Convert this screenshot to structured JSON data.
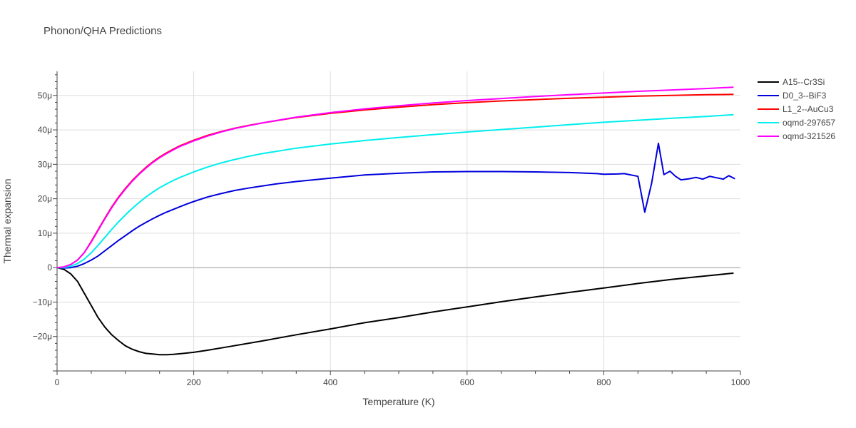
{
  "chart_data": {
    "type": "line",
    "title": "Phonon/QHA Predictions",
    "xlabel": "Temperature (K)",
    "ylabel": "Thermal expansion",
    "xlim": [
      0,
      1000
    ],
    "ylim": [
      -30,
      57
    ],
    "x_ticks": [
      {
        "value": 0,
        "label": "0"
      },
      {
        "value": 200,
        "label": "200"
      },
      {
        "value": 400,
        "label": "400"
      },
      {
        "value": 600,
        "label": "600"
      },
      {
        "value": 800,
        "label": "800"
      },
      {
        "value": 1000,
        "label": "1000"
      }
    ],
    "y_ticks": [
      {
        "value": -20,
        "label": "−20μ"
      },
      {
        "value": -10,
        "label": "−10μ"
      },
      {
        "value": 0,
        "label": "0"
      },
      {
        "value": 10,
        "label": "10μ"
      },
      {
        "value": 20,
        "label": "20μ"
      },
      {
        "value": 30,
        "label": "30μ"
      },
      {
        "value": 40,
        "label": "40μ"
      },
      {
        "value": 50,
        "label": "50μ"
      }
    ],
    "grid": true,
    "legend_position": "top-right",
    "series": [
      {
        "name": "A15--Cr3Si",
        "color": "#000000",
        "points": [
          [
            0,
            0
          ],
          [
            10,
            -0.5
          ],
          [
            20,
            -1.8
          ],
          [
            30,
            -4
          ],
          [
            40,
            -7.5
          ],
          [
            50,
            -11
          ],
          [
            60,
            -14.5
          ],
          [
            70,
            -17.3
          ],
          [
            80,
            -19.5
          ],
          [
            90,
            -21.2
          ],
          [
            100,
            -22.7
          ],
          [
            110,
            -23.7
          ],
          [
            120,
            -24.4
          ],
          [
            130,
            -24.9
          ],
          [
            140,
            -25.1
          ],
          [
            150,
            -25.3
          ],
          [
            160,
            -25.3
          ],
          [
            170,
            -25.2
          ],
          [
            180,
            -25.0
          ],
          [
            200,
            -24.6
          ],
          [
            220,
            -24.0
          ],
          [
            250,
            -23.0
          ],
          [
            300,
            -21.3
          ],
          [
            350,
            -19.5
          ],
          [
            400,
            -17.8
          ],
          [
            450,
            -16.0
          ],
          [
            500,
            -14.5
          ],
          [
            550,
            -12.9
          ],
          [
            600,
            -11.4
          ],
          [
            650,
            -9.9
          ],
          [
            700,
            -8.5
          ],
          [
            750,
            -7.2
          ],
          [
            800,
            -5.9
          ],
          [
            850,
            -4.6
          ],
          [
            900,
            -3.4
          ],
          [
            950,
            -2.4
          ],
          [
            990,
            -1.6
          ]
        ]
      },
      {
        "name": "D0_3--BiF3",
        "color": "#0000dd",
        "points": [
          [
            0,
            0
          ],
          [
            10,
            -0.1
          ],
          [
            20,
            0
          ],
          [
            30,
            0.4
          ],
          [
            40,
            1.2
          ],
          [
            50,
            2.2
          ],
          [
            60,
            3.4
          ],
          [
            70,
            4.9
          ],
          [
            80,
            6.4
          ],
          [
            90,
            7.9
          ],
          [
            100,
            9.3
          ],
          [
            110,
            10.7
          ],
          [
            120,
            12.0
          ],
          [
            130,
            13.1
          ],
          [
            140,
            14.2
          ],
          [
            150,
            15.2
          ],
          [
            160,
            16.1
          ],
          [
            170,
            16.9
          ],
          [
            180,
            17.7
          ],
          [
            190,
            18.5
          ],
          [
            200,
            19.2
          ],
          [
            220,
            20.5
          ],
          [
            240,
            21.5
          ],
          [
            260,
            22.4
          ],
          [
            280,
            23.1
          ],
          [
            300,
            23.7
          ],
          [
            320,
            24.3
          ],
          [
            350,
            25.0
          ],
          [
            400,
            26.0
          ],
          [
            450,
            26.9
          ],
          [
            500,
            27.4
          ],
          [
            550,
            27.8
          ],
          [
            600,
            27.9
          ],
          [
            650,
            27.9
          ],
          [
            700,
            27.8
          ],
          [
            750,
            27.6
          ],
          [
            790,
            27.3
          ],
          [
            800,
            27.1
          ],
          [
            820,
            27.2
          ],
          [
            830,
            27.3
          ],
          [
            850,
            26.5
          ],
          [
            860,
            16.1
          ],
          [
            870,
            24.5
          ],
          [
            880,
            36.1
          ],
          [
            888,
            27.0
          ],
          [
            897,
            28.0
          ],
          [
            905,
            26.5
          ],
          [
            913,
            25.5
          ],
          [
            925,
            25.8
          ],
          [
            935,
            26.2
          ],
          [
            945,
            25.7
          ],
          [
            955,
            26.5
          ],
          [
            965,
            26.1
          ],
          [
            975,
            25.7
          ],
          [
            983,
            26.7
          ],
          [
            992,
            25.8
          ]
        ]
      },
      {
        "name": "L1_2--AuCu3",
        "color": "#ff0000",
        "points": [
          [
            0,
            0
          ],
          [
            10,
            0.2
          ],
          [
            20,
            0.9
          ],
          [
            30,
            2.2
          ],
          [
            40,
            4.4
          ],
          [
            50,
            7.6
          ],
          [
            60,
            11.0
          ],
          [
            70,
            14.4
          ],
          [
            80,
            17.6
          ],
          [
            90,
            20.5
          ],
          [
            100,
            23.0
          ],
          [
            110,
            25.3
          ],
          [
            120,
            27.3
          ],
          [
            130,
            29.1
          ],
          [
            140,
            30.7
          ],
          [
            150,
            32.1
          ],
          [
            160,
            33.3
          ],
          [
            170,
            34.4
          ],
          [
            180,
            35.4
          ],
          [
            190,
            36.2
          ],
          [
            200,
            37.0
          ],
          [
            220,
            38.4
          ],
          [
            240,
            39.5
          ],
          [
            260,
            40.5
          ],
          [
            280,
            41.3
          ],
          [
            300,
            42.0
          ],
          [
            350,
            43.6
          ],
          [
            400,
            44.8
          ],
          [
            450,
            45.8
          ],
          [
            500,
            46.6
          ],
          [
            550,
            47.3
          ],
          [
            600,
            47.9
          ],
          [
            650,
            48.4
          ],
          [
            700,
            48.8
          ],
          [
            750,
            49.2
          ],
          [
            800,
            49.5
          ],
          [
            850,
            49.8
          ],
          [
            900,
            50.0
          ],
          [
            950,
            50.2
          ],
          [
            990,
            50.3
          ]
        ]
      },
      {
        "name": "oqmd-297657",
        "color": "#00eeee",
        "points": [
          [
            0,
            0
          ],
          [
            10,
            0
          ],
          [
            20,
            0.4
          ],
          [
            30,
            1.2
          ],
          [
            40,
            2.5
          ],
          [
            50,
            4.3
          ],
          [
            60,
            6.5
          ],
          [
            70,
            8.8
          ],
          [
            80,
            11.1
          ],
          [
            90,
            13.3
          ],
          [
            100,
            15.3
          ],
          [
            110,
            17.2
          ],
          [
            120,
            18.9
          ],
          [
            130,
            20.5
          ],
          [
            140,
            21.9
          ],
          [
            150,
            23.2
          ],
          [
            160,
            24.3
          ],
          [
            170,
            25.3
          ],
          [
            180,
            26.2
          ],
          [
            190,
            27.0
          ],
          [
            200,
            27.8
          ],
          [
            220,
            29.2
          ],
          [
            240,
            30.4
          ],
          [
            260,
            31.4
          ],
          [
            280,
            32.3
          ],
          [
            300,
            33.1
          ],
          [
            350,
            34.7
          ],
          [
            400,
            35.9
          ],
          [
            450,
            36.9
          ],
          [
            500,
            37.8
          ],
          [
            550,
            38.6
          ],
          [
            600,
            39.4
          ],
          [
            650,
            40.1
          ],
          [
            700,
            40.8
          ],
          [
            750,
            41.5
          ],
          [
            800,
            42.2
          ],
          [
            850,
            42.8
          ],
          [
            900,
            43.4
          ],
          [
            950,
            43.9
          ],
          [
            990,
            44.4
          ]
        ]
      },
      {
        "name": "oqmd-321526",
        "color": "#ff00ff",
        "points": [
          [
            0,
            0
          ],
          [
            10,
            0.2
          ],
          [
            20,
            0.9
          ],
          [
            30,
            2.2
          ],
          [
            40,
            4.4
          ],
          [
            50,
            7.4
          ],
          [
            60,
            10.8
          ],
          [
            70,
            14.2
          ],
          [
            80,
            17.4
          ],
          [
            90,
            20.3
          ],
          [
            100,
            22.8
          ],
          [
            110,
            25.1
          ],
          [
            120,
            27.1
          ],
          [
            130,
            28.9
          ],
          [
            140,
            30.5
          ],
          [
            150,
            31.9
          ],
          [
            160,
            33.1
          ],
          [
            170,
            34.2
          ],
          [
            180,
            35.2
          ],
          [
            190,
            36.0
          ],
          [
            200,
            36.8
          ],
          [
            220,
            38.2
          ],
          [
            240,
            39.4
          ],
          [
            260,
            40.4
          ],
          [
            280,
            41.2
          ],
          [
            300,
            42.0
          ],
          [
            350,
            43.7
          ],
          [
            400,
            45.0
          ],
          [
            450,
            46.1
          ],
          [
            500,
            47.0
          ],
          [
            550,
            47.8
          ],
          [
            600,
            48.5
          ],
          [
            650,
            49.1
          ],
          [
            700,
            49.7
          ],
          [
            750,
            50.2
          ],
          [
            800,
            50.7
          ],
          [
            850,
            51.2
          ],
          [
            900,
            51.6
          ],
          [
            950,
            52.0
          ],
          [
            990,
            52.4
          ]
        ]
      }
    ]
  }
}
